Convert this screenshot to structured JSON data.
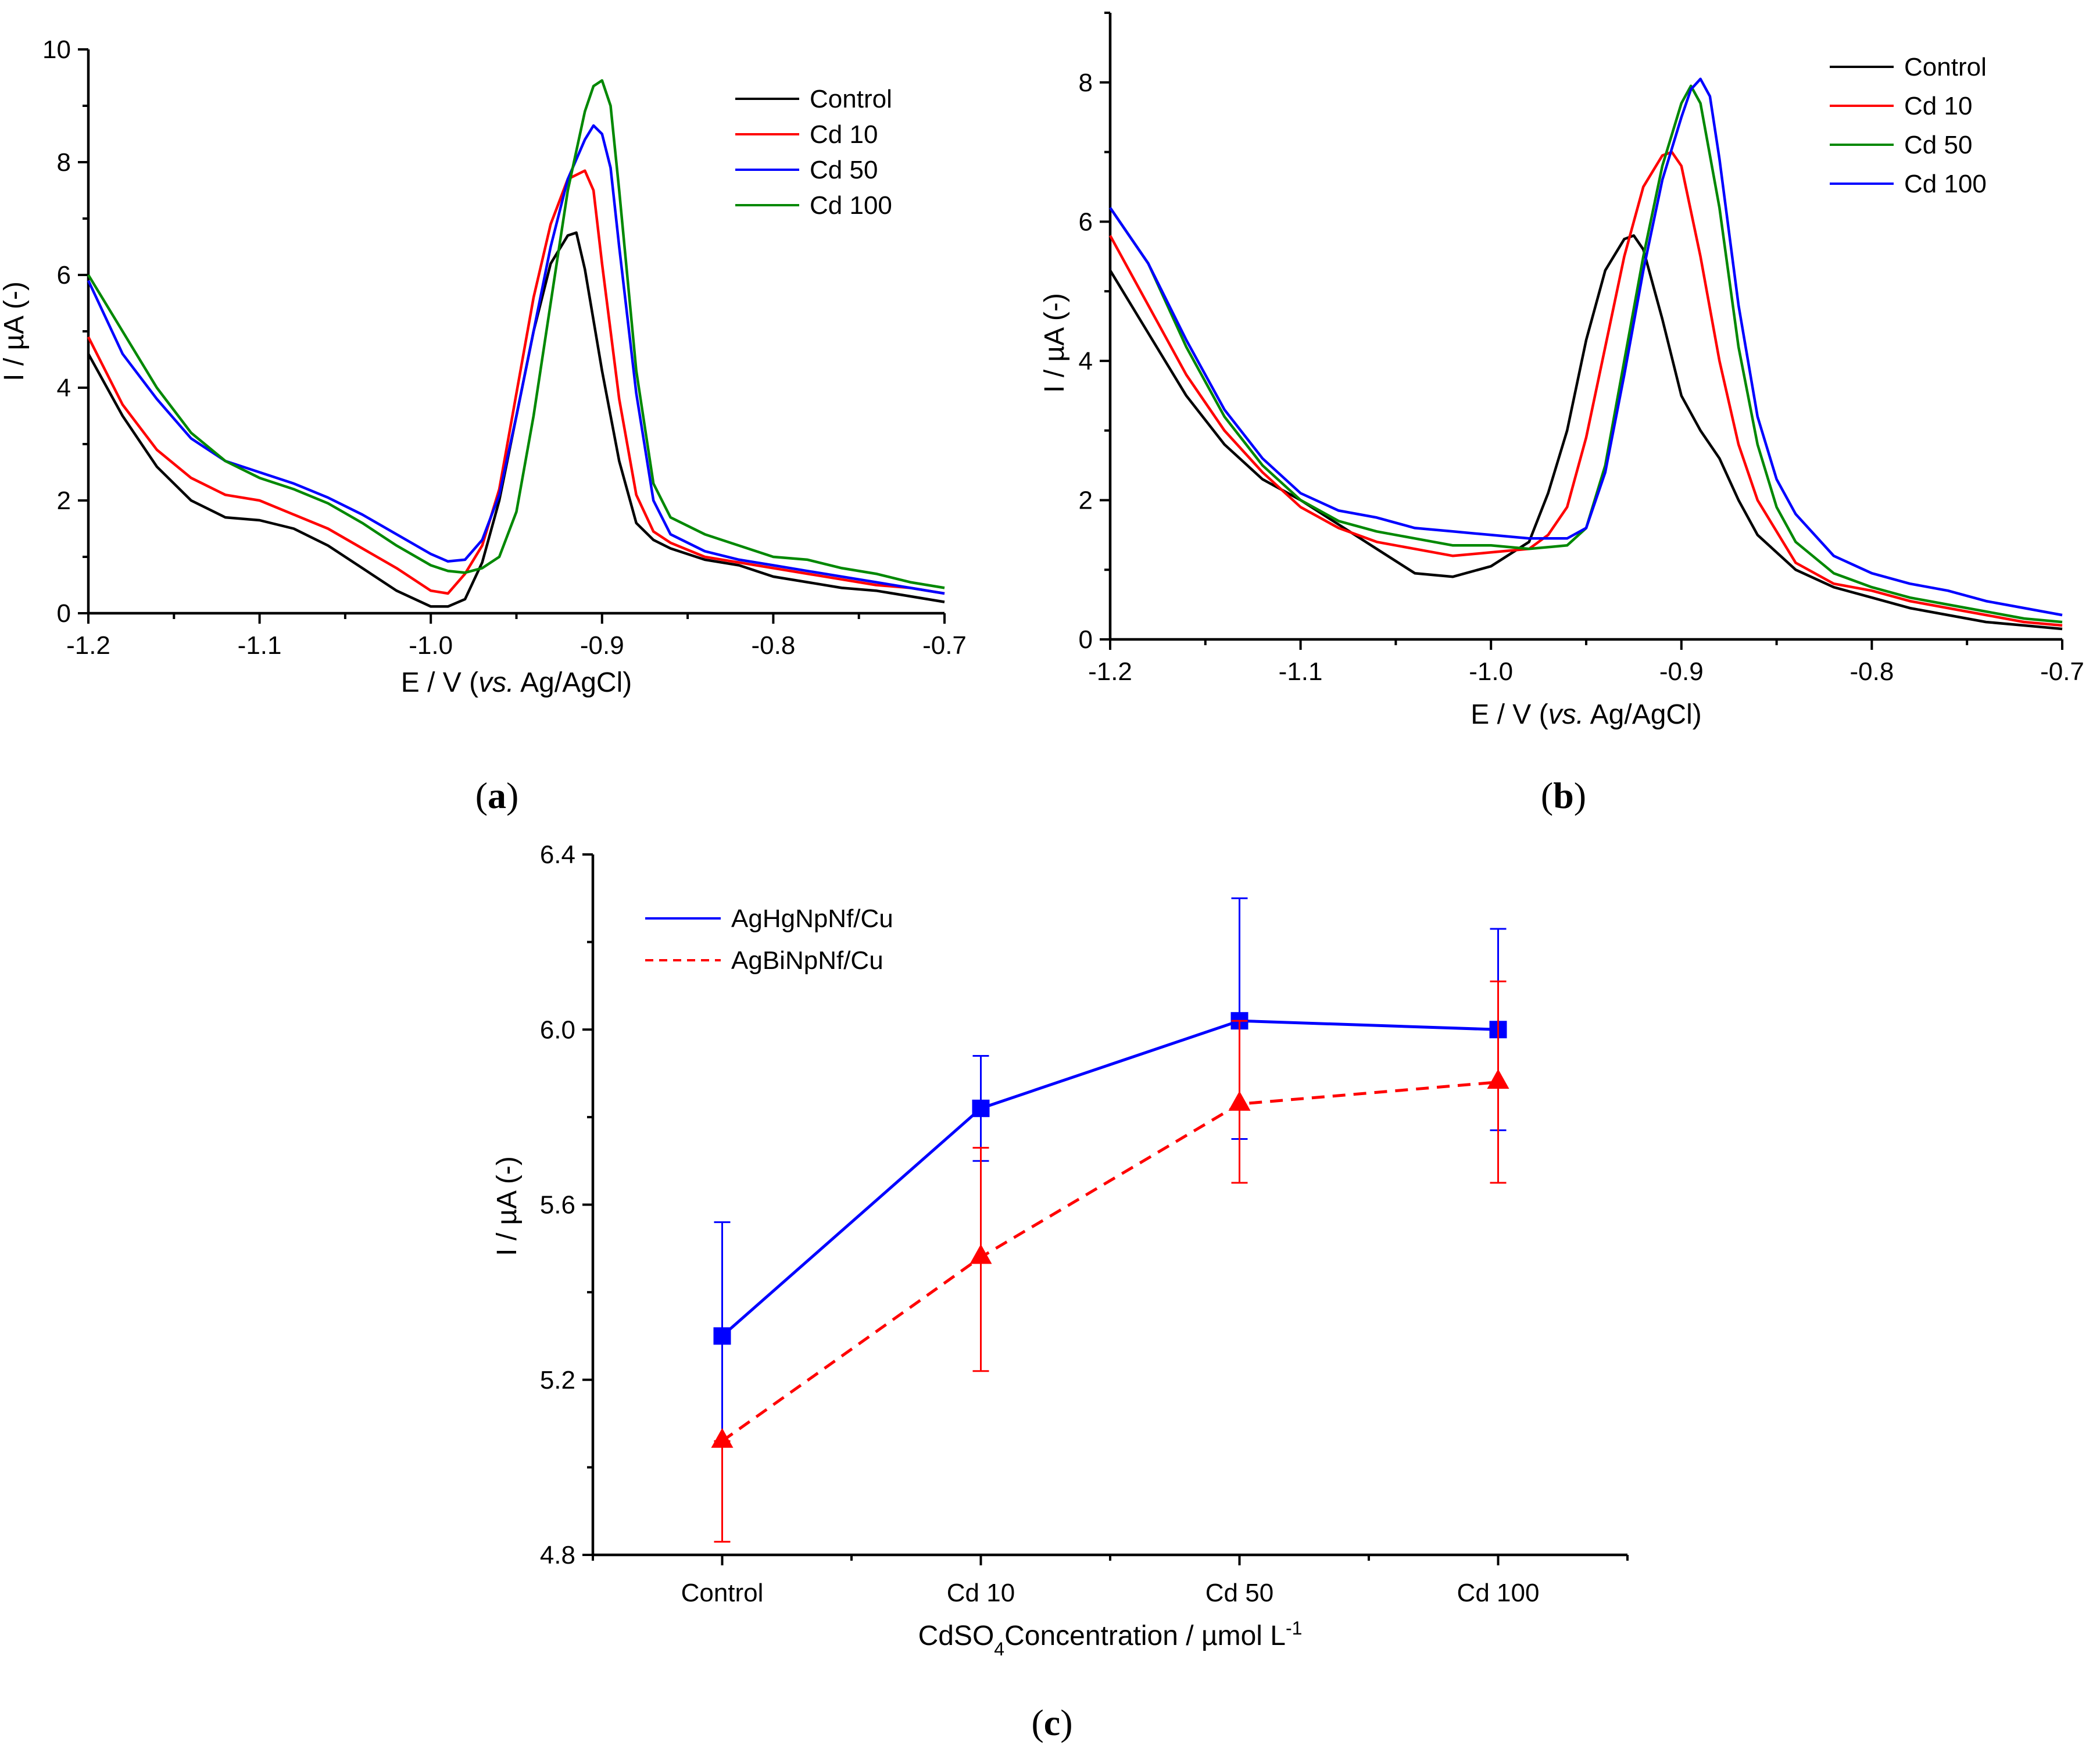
{
  "chart_data": [
    {
      "panel": "(a)",
      "panel_letter": "a",
      "type": "line",
      "xlabel_parts": [
        "E / V (",
        "vs.",
        " Ag/AgCl)"
      ],
      "ylabel": "I / µA (-)",
      "xlim": [
        -1.2,
        -0.7
      ],
      "ylim": [
        0,
        10
      ],
      "xticks": [
        -1.2,
        -1.1,
        -1.0,
        -0.9,
        -0.8,
        -0.7
      ],
      "xtick_labels": [
        "-1.2",
        "-1.1",
        "-1.0",
        "-0.9",
        "-0.8",
        "-0.7"
      ],
      "yticks": [
        0,
        2,
        4,
        6,
        8,
        10
      ],
      "ytick_labels": [
        "0",
        "2",
        "4",
        "6",
        "8",
        "10"
      ],
      "legend_position": "top-right",
      "series": [
        {
          "name": "Control",
          "color": "#000000",
          "x": [
            -1.2,
            -1.18,
            -1.16,
            -1.14,
            -1.12,
            -1.1,
            -1.08,
            -1.06,
            -1.04,
            -1.02,
            -1.0,
            -0.99,
            -0.98,
            -0.97,
            -0.96,
            -0.95,
            -0.94,
            -0.93,
            -0.92,
            -0.915,
            -0.91,
            -0.9,
            -0.89,
            -0.88,
            -0.87,
            -0.86,
            -0.84,
            -0.82,
            -0.8,
            -0.78,
            -0.76,
            -0.74,
            -0.72,
            -0.7
          ],
          "y": [
            4.6,
            3.5,
            2.6,
            2.0,
            1.7,
            1.65,
            1.5,
            1.2,
            0.8,
            0.4,
            0.12,
            0.12,
            0.25,
            0.9,
            2.0,
            3.5,
            5.0,
            6.2,
            6.7,
            6.75,
            6.1,
            4.3,
            2.7,
            1.6,
            1.3,
            1.15,
            0.95,
            0.85,
            0.65,
            0.55,
            0.45,
            0.4,
            0.3,
            0.2
          ]
        },
        {
          "name": "Cd 10",
          "color": "#ff0000",
          "x": [
            -1.2,
            -1.18,
            -1.16,
            -1.14,
            -1.12,
            -1.1,
            -1.08,
            -1.06,
            -1.04,
            -1.02,
            -1.0,
            -0.99,
            -0.98,
            -0.97,
            -0.96,
            -0.95,
            -0.94,
            -0.93,
            -0.92,
            -0.91,
            -0.905,
            -0.9,
            -0.89,
            -0.88,
            -0.87,
            -0.86,
            -0.84,
            -0.82,
            -0.8,
            -0.78,
            -0.76,
            -0.74,
            -0.72,
            -0.7
          ],
          "y": [
            4.9,
            3.7,
            2.9,
            2.4,
            2.1,
            2.0,
            1.75,
            1.5,
            1.15,
            0.8,
            0.4,
            0.35,
            0.7,
            1.2,
            2.2,
            3.9,
            5.6,
            6.9,
            7.7,
            7.85,
            7.5,
            6.2,
            3.8,
            2.1,
            1.45,
            1.25,
            1.0,
            0.9,
            0.8,
            0.7,
            0.6,
            0.5,
            0.45,
            0.35
          ]
        },
        {
          "name": "Cd 50",
          "color": "#0000ff",
          "x": [
            -1.2,
            -1.18,
            -1.16,
            -1.14,
            -1.12,
            -1.1,
            -1.08,
            -1.06,
            -1.04,
            -1.02,
            -1.0,
            -0.99,
            -0.98,
            -0.97,
            -0.96,
            -0.95,
            -0.94,
            -0.93,
            -0.92,
            -0.91,
            -0.905,
            -0.9,
            -0.895,
            -0.89,
            -0.88,
            -0.87,
            -0.86,
            -0.84,
            -0.82,
            -0.8,
            -0.78,
            -0.76,
            -0.74,
            -0.72,
            -0.7
          ],
          "y": [
            5.9,
            4.6,
            3.8,
            3.1,
            2.7,
            2.5,
            2.3,
            2.05,
            1.75,
            1.4,
            1.05,
            0.92,
            0.95,
            1.3,
            2.1,
            3.5,
            5.0,
            6.5,
            7.7,
            8.4,
            8.65,
            8.5,
            7.9,
            6.5,
            3.9,
            2.0,
            1.4,
            1.1,
            0.95,
            0.85,
            0.75,
            0.65,
            0.55,
            0.45,
            0.35
          ]
        },
        {
          "name": "Cd 100",
          "color": "#008800",
          "x": [
            -1.2,
            -1.18,
            -1.16,
            -1.14,
            -1.12,
            -1.1,
            -1.08,
            -1.06,
            -1.04,
            -1.02,
            -1.0,
            -0.99,
            -0.98,
            -0.97,
            -0.96,
            -0.95,
            -0.94,
            -0.93,
            -0.92,
            -0.91,
            -0.905,
            -0.9,
            -0.895,
            -0.89,
            -0.88,
            -0.87,
            -0.86,
            -0.84,
            -0.82,
            -0.8,
            -0.78,
            -0.76,
            -0.74,
            -0.72,
            -0.7
          ],
          "y": [
            6.0,
            5.0,
            4.0,
            3.2,
            2.7,
            2.4,
            2.2,
            1.95,
            1.6,
            1.2,
            0.85,
            0.75,
            0.72,
            0.8,
            1.0,
            1.8,
            3.5,
            5.5,
            7.5,
            8.9,
            9.35,
            9.45,
            9.0,
            7.5,
            4.3,
            2.3,
            1.7,
            1.4,
            1.2,
            1.0,
            0.95,
            0.8,
            0.7,
            0.55,
            0.45
          ]
        }
      ]
    },
    {
      "panel": "(b)",
      "panel_letter": "b",
      "type": "line",
      "xlabel_parts": [
        "E / V (",
        "vs.",
        " Ag/AgCl)"
      ],
      "ylabel": "I / µA (-)",
      "xlim": [
        -1.2,
        -0.7
      ],
      "ylim": [
        0,
        9
      ],
      "xticks": [
        -1.2,
        -1.1,
        -1.0,
        -0.9,
        -0.8,
        -0.7
      ],
      "xtick_labels": [
        "-1.2",
        "-1.1",
        "-1.0",
        "-0.9",
        "-0.8",
        "-0.7"
      ],
      "yticks": [
        0,
        2,
        4,
        6,
        8
      ],
      "ytick_labels": [
        "0",
        "2",
        "4",
        "6",
        "8"
      ],
      "legend_position": "top-right",
      "series": [
        {
          "name": "Control",
          "color": "#000000",
          "x": [
            -1.2,
            -1.18,
            -1.16,
            -1.14,
            -1.12,
            -1.1,
            -1.08,
            -1.06,
            -1.04,
            -1.02,
            -1.0,
            -0.98,
            -0.97,
            -0.96,
            -0.95,
            -0.94,
            -0.93,
            -0.925,
            -0.92,
            -0.91,
            -0.9,
            -0.89,
            -0.88,
            -0.87,
            -0.86,
            -0.84,
            -0.82,
            -0.8,
            -0.78,
            -0.76,
            -0.74,
            -0.72,
            -0.7
          ],
          "y": [
            5.3,
            4.4,
            3.5,
            2.8,
            2.3,
            2.0,
            1.65,
            1.3,
            0.95,
            0.9,
            1.05,
            1.4,
            2.1,
            3.0,
            4.3,
            5.3,
            5.75,
            5.8,
            5.6,
            4.6,
            3.5,
            3.0,
            2.6,
            2.0,
            1.5,
            1.0,
            0.75,
            0.6,
            0.45,
            0.35,
            0.25,
            0.2,
            0.15
          ]
        },
        {
          "name": "Cd 10",
          "color": "#ff0000",
          "x": [
            -1.2,
            -1.18,
            -1.16,
            -1.14,
            -1.12,
            -1.1,
            -1.08,
            -1.06,
            -1.04,
            -1.02,
            -1.0,
            -0.98,
            -0.97,
            -0.96,
            -0.95,
            -0.94,
            -0.93,
            -0.92,
            -0.91,
            -0.905,
            -0.9,
            -0.89,
            -0.88,
            -0.87,
            -0.86,
            -0.84,
            -0.82,
            -0.8,
            -0.78,
            -0.76,
            -0.74,
            -0.72,
            -0.7
          ],
          "y": [
            5.8,
            4.8,
            3.8,
            3.0,
            2.4,
            1.9,
            1.6,
            1.4,
            1.3,
            1.2,
            1.25,
            1.3,
            1.5,
            1.9,
            2.9,
            4.2,
            5.5,
            6.5,
            6.95,
            7.0,
            6.8,
            5.5,
            4.0,
            2.8,
            2.0,
            1.1,
            0.8,
            0.7,
            0.55,
            0.45,
            0.35,
            0.25,
            0.2
          ]
        },
        {
          "name": "Cd 50",
          "color": "#008800",
          "x": [
            -1.2,
            -1.18,
            -1.16,
            -1.14,
            -1.12,
            -1.1,
            -1.08,
            -1.06,
            -1.04,
            -1.02,
            -1.0,
            -0.98,
            -0.96,
            -0.95,
            -0.94,
            -0.93,
            -0.92,
            -0.91,
            -0.9,
            -0.895,
            -0.89,
            -0.88,
            -0.87,
            -0.86,
            -0.85,
            -0.84,
            -0.82,
            -0.8,
            -0.78,
            -0.76,
            -0.74,
            -0.72,
            -0.7
          ],
          "y": [
            6.2,
            5.4,
            4.2,
            3.2,
            2.5,
            2.0,
            1.7,
            1.55,
            1.45,
            1.35,
            1.35,
            1.3,
            1.35,
            1.6,
            2.5,
            4.0,
            5.5,
            6.8,
            7.7,
            7.95,
            7.7,
            6.2,
            4.2,
            2.8,
            1.9,
            1.4,
            0.95,
            0.75,
            0.6,
            0.5,
            0.4,
            0.3,
            0.25
          ]
        },
        {
          "name": "Cd 100",
          "color": "#0000ff",
          "x": [
            -1.2,
            -1.18,
            -1.16,
            -1.14,
            -1.12,
            -1.1,
            -1.08,
            -1.06,
            -1.04,
            -1.02,
            -1.0,
            -0.98,
            -0.96,
            -0.95,
            -0.94,
            -0.93,
            -0.92,
            -0.91,
            -0.9,
            -0.895,
            -0.89,
            -0.885,
            -0.88,
            -0.87,
            -0.86,
            -0.85,
            -0.84,
            -0.82,
            -0.8,
            -0.78,
            -0.76,
            -0.74,
            -0.72,
            -0.7
          ],
          "y": [
            6.2,
            5.4,
            4.3,
            3.3,
            2.6,
            2.1,
            1.85,
            1.75,
            1.6,
            1.55,
            1.5,
            1.45,
            1.45,
            1.6,
            2.4,
            3.8,
            5.3,
            6.6,
            7.5,
            7.9,
            8.05,
            7.8,
            6.9,
            4.8,
            3.2,
            2.3,
            1.8,
            1.2,
            0.95,
            0.8,
            0.7,
            0.55,
            0.45,
            0.35
          ]
        }
      ]
    },
    {
      "panel": "(c)",
      "panel_letter": "c",
      "type": "line",
      "categories": [
        "Control",
        "Cd 10",
        "Cd 50",
        "Cd 100"
      ],
      "xlabel_parts": [
        "CdSO",
        "4",
        "Concentration / µmol L",
        "-1"
      ],
      "ylabel": "I / µA (-)",
      "ylim": [
        4.8,
        6.4
      ],
      "yticks": [
        4.8,
        5.2,
        5.6,
        6.0,
        6.4
      ],
      "ytick_labels": [
        "4.8",
        "5.2",
        "5.6",
        "6.0",
        "6.4"
      ],
      "legend_position": "top-left",
      "series": [
        {
          "name": "AgHgNpNf/Cu",
          "color": "#0000ff",
          "marker": "square",
          "line": "solid",
          "values": [
            5.3,
            5.82,
            6.02,
            6.0
          ],
          "error_low": [
            5.05,
            5.7,
            5.75,
            5.77
          ],
          "error_high": [
            5.56,
            5.94,
            6.3,
            6.23
          ]
        },
        {
          "name": "AgBiNpNf/Cu",
          "color": "#ff0000",
          "marker": "triangle",
          "line": "dashed",
          "values": [
            5.06,
            5.48,
            5.83,
            5.88
          ],
          "error_low": [
            4.83,
            5.22,
            5.65,
            5.65
          ],
          "error_high": [
            5.06,
            5.73,
            6.02,
            6.11
          ]
        }
      ]
    }
  ]
}
